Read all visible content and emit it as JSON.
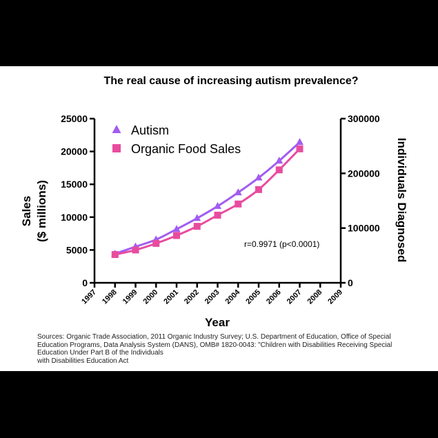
{
  "colors": {
    "background": "#000000",
    "panel": "#ffffff",
    "autism": "#a25cf0",
    "organic": "#e84c9f",
    "axis": "#000000"
  },
  "chart_data": {
    "type": "line",
    "title": "The real cause of increasing autism prevalence?",
    "xlabel": "Year",
    "ylabel_left_line1": "Sales",
    "ylabel_left_line2": "($ millions)",
    "ylabel_right": "Individuals Diagnosed",
    "x_ticks": [
      "1997",
      "1998",
      "1999",
      "2000",
      "2001",
      "2002",
      "2003",
      "2004",
      "2005",
      "2006",
      "2007",
      "2008",
      "2009"
    ],
    "x": [
      1998,
      1999,
      2000,
      2001,
      2002,
      2003,
      2004,
      2005,
      2006,
      2007
    ],
    "ylim_left": [
      0,
      25000
    ],
    "yticks_left": [
      "0",
      "5000",
      "10000",
      "15000",
      "20000",
      "25000"
    ],
    "ylim_right": [
      0,
      300000
    ],
    "yticks_right": [
      "0",
      "100000",
      "200000",
      "300000"
    ],
    "series": [
      {
        "name": "Autism",
        "axis": "right",
        "marker": "triangle",
        "color": "#a25cf0",
        "values": [
          53000,
          66000,
          79000,
          98000,
          118000,
          140000,
          165000,
          192000,
          223000,
          257000
        ]
      },
      {
        "name": "Organic Food Sales",
        "axis": "left",
        "marker": "square",
        "color": "#e84c9f",
        "values": [
          4300,
          5000,
          6000,
          7200,
          8600,
          10300,
          12000,
          14200,
          17200,
          20400
        ]
      }
    ],
    "annotation": "r=0.9971 (p<0.0001)",
    "legend_position": "top-left",
    "grid": false
  },
  "sources": {
    "line1": "Sources: Organic Trade Association,  2011 Organic Industry Survey; U.S. Department of Education, Office of Special",
    "line2": "Education Programs, Data Analysis System (DANS), OMB# 1820-0043: \"Children with Disabilities Receiving Special",
    "line3": "Education Under Part B of the Individuals",
    "line4": "with Disabilities Education Act"
  }
}
